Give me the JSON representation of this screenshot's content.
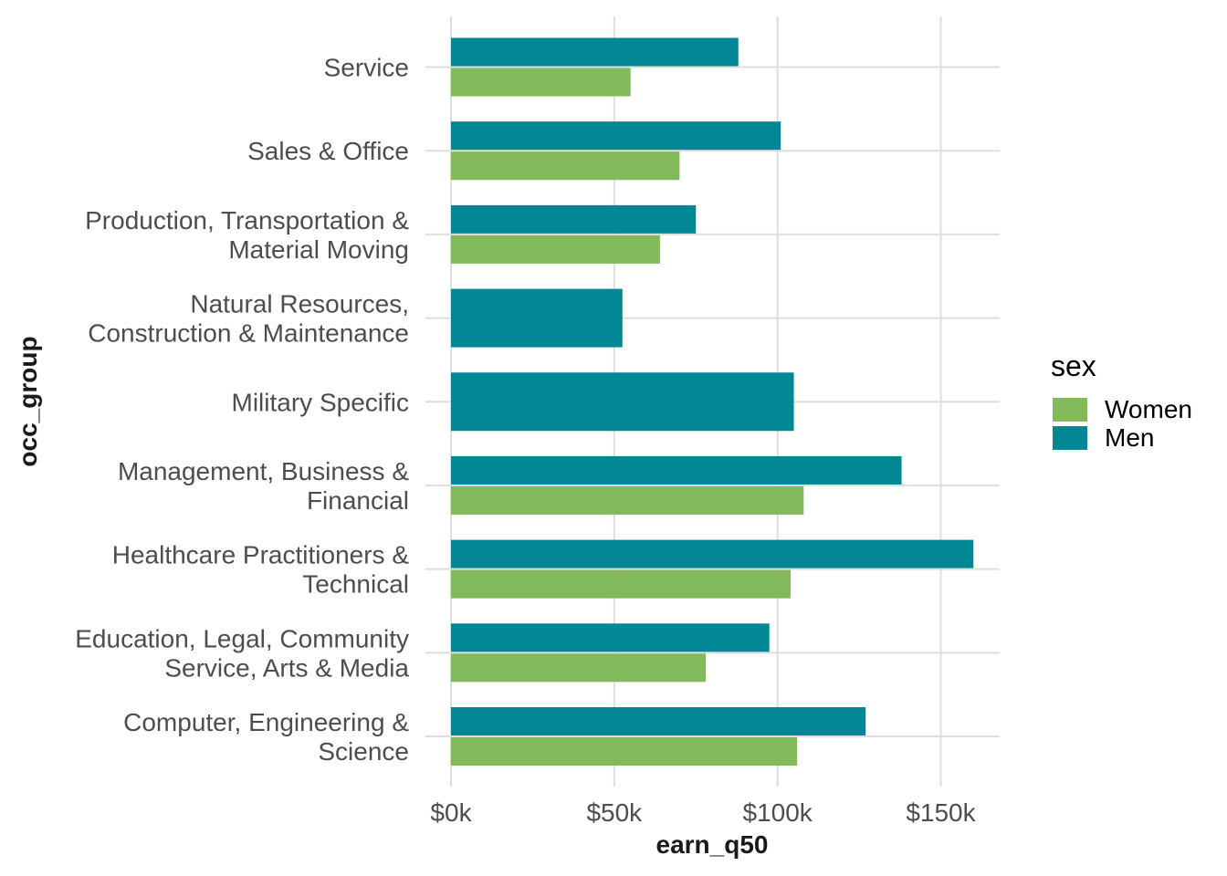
{
  "chart_data": {
    "type": "bar",
    "orientation": "horizontal",
    "grouped": true,
    "xlabel": "earn_q50",
    "ylabel": "occ_group",
    "xlim": [
      0,
      168000
    ],
    "x_ticks": [
      0,
      50000,
      100000,
      150000
    ],
    "x_tick_labels": [
      "$0k",
      "$50k",
      "$100k",
      "$150k"
    ],
    "grid": true,
    "legend_position": "right",
    "legend_title": "sex",
    "categories": [
      "Service",
      "Sales & Office",
      "Production, Transportation & Material Moving",
      "Natural Resources, Construction & Maintenance",
      "Military Specific",
      "Management, Business & Financial",
      "Healthcare Practitioners & Technical",
      "Education, Legal, Community Service, Arts & Media",
      "Computer, Engineering & Science"
    ],
    "category_label_lines": [
      [
        "Service"
      ],
      [
        "Sales & Office"
      ],
      [
        "Production, Transportation &",
        "Material Moving"
      ],
      [
        "Natural Resources,",
        "Construction & Maintenance"
      ],
      [
        "Military Specific"
      ],
      [
        "Management, Business &",
        "Financial"
      ],
      [
        "Healthcare Practitioners &",
        "Technical"
      ],
      [
        "Education, Legal, Community",
        "Service, Arts & Media"
      ],
      [
        "Computer, Engineering &",
        "Science"
      ]
    ],
    "series": [
      {
        "name": "Women",
        "color": "#82b95b",
        "values": [
          55000,
          70000,
          64000,
          null,
          null,
          108000,
          104000,
          78000,
          106000
        ]
      },
      {
        "name": "Men",
        "color": "#028895",
        "values": [
          88000,
          101000,
          75000,
          52500,
          105000,
          138000,
          160000,
          97500,
          127000
        ]
      }
    ]
  }
}
